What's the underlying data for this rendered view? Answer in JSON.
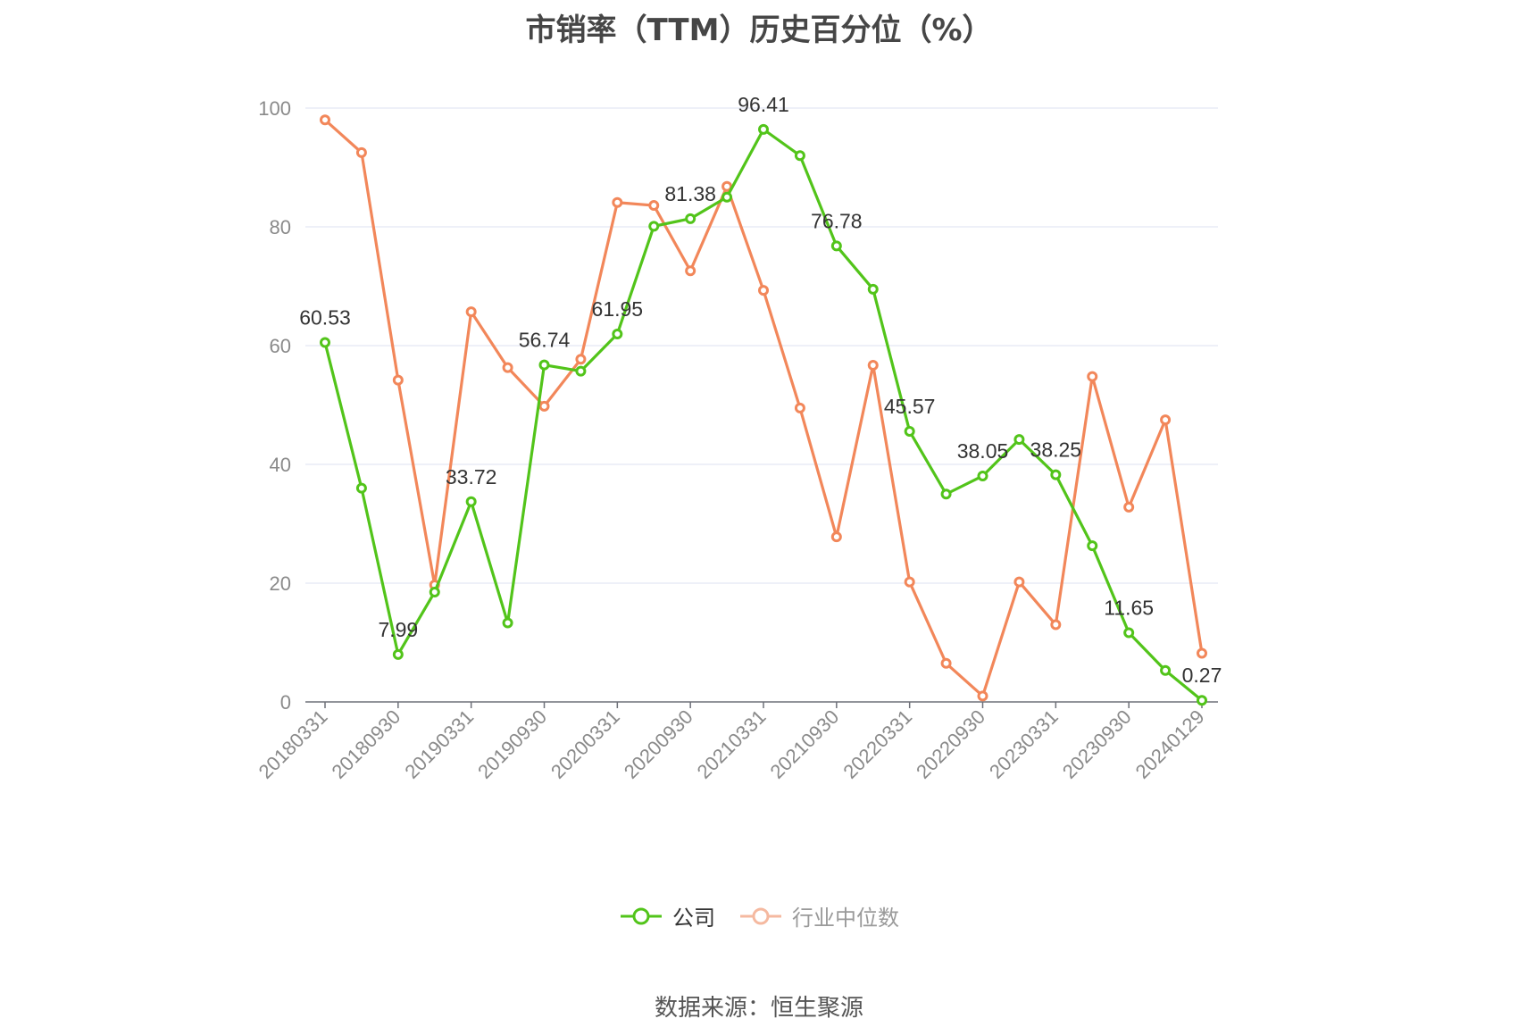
{
  "title": "市销率（TTM）历史百分位（%）",
  "source": "数据来源：恒生聚源",
  "colors": {
    "company": "#52c41a",
    "industry": "#f2875a",
    "grid": "#dde2f2",
    "axis": "#6e7079"
  },
  "chart_data": {
    "type": "line",
    "title": "市销率（TTM）历史百分位（%）",
    "xlabel": "",
    "ylabel": "",
    "ylim": [
      0,
      100
    ],
    "yticks": [
      0,
      20,
      40,
      60,
      80,
      100
    ],
    "grid": true,
    "legend_position": "bottom",
    "x": [
      "20180331",
      "20180630",
      "20180930",
      "20181231",
      "20190331",
      "20190630",
      "20190930",
      "20191231",
      "20200331",
      "20200630",
      "20200930",
      "20201231",
      "20210331",
      "20210630",
      "20210930",
      "20211231",
      "20220331",
      "20220630",
      "20220930",
      "20221231",
      "20230331",
      "20230630",
      "20230930",
      "20231231",
      "20240129"
    ],
    "x_tick_labels": [
      "20180331",
      "20180930",
      "20190331",
      "20190930",
      "20200331",
      "20200930",
      "20210331",
      "20210930",
      "20220331",
      "20220930",
      "20230331",
      "20230930",
      "20240129"
    ],
    "series": [
      {
        "name": "公司",
        "values": [
          60.53,
          36,
          7.99,
          18.5,
          33.72,
          13.3,
          56.74,
          55.7,
          61.95,
          80.1,
          81.38,
          85.0,
          96.41,
          92.0,
          76.78,
          69.5,
          45.57,
          35.0,
          38.05,
          44.2,
          38.25,
          26.3,
          11.65,
          5.3,
          0.27
        ],
        "labels": [
          "60.53",
          "",
          "7.99",
          "",
          "33.72",
          "",
          "56.74",
          "",
          "61.95",
          "",
          "81.38",
          "",
          "96.41",
          "",
          "76.78",
          "",
          "45.57",
          "",
          "38.05",
          "",
          "38.25",
          "",
          "11.65",
          "",
          "0.27"
        ]
      },
      {
        "name": "行业中位数",
        "values": [
          98,
          92.5,
          54.2,
          19.7,
          65.7,
          56.3,
          49.8,
          57.7,
          84.1,
          83.6,
          72.6,
          86.8,
          69.3,
          49.5,
          27.8,
          56.7,
          20.2,
          6.5,
          1.0,
          20.2,
          13.0,
          54.8,
          32.8,
          47.5,
          8.2
        ]
      }
    ]
  }
}
